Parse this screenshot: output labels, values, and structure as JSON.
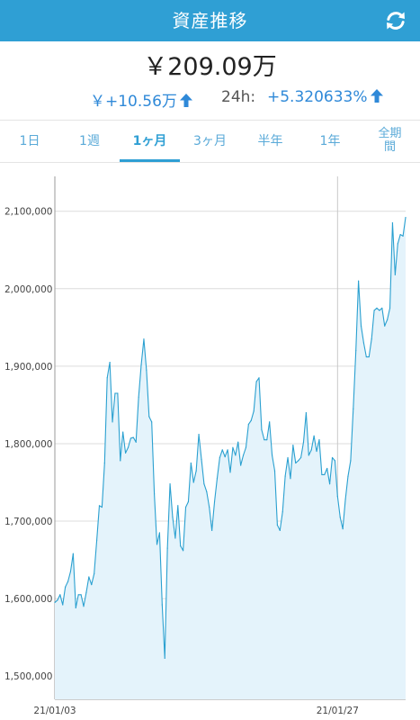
{
  "header": {
    "title": "資産推移",
    "refresh_icon": "refresh-icon",
    "color": "#2f9fd4"
  },
  "summary": {
    "total": "￥209.09万",
    "change_value": "￥+10.56万",
    "period_label": "24h:",
    "change_percent": "+5.320633%",
    "change_direction": "up",
    "change_color": "#2f89d8"
  },
  "tabs": [
    {
      "label": "1日",
      "active": false
    },
    {
      "label": "1週",
      "active": false
    },
    {
      "label": "1ヶ月",
      "active": true
    },
    {
      "label": "3ヶ月",
      "active": false
    },
    {
      "label": "半年",
      "active": false
    },
    {
      "label": "1年",
      "active": false
    },
    {
      "label": "全期間",
      "active": false
    }
  ],
  "chart_data": {
    "type": "area",
    "y_ticks": [
      "2,100,000",
      "2,000,000",
      "1,900,000",
      "1,800,000",
      "1,700,000",
      "1,600,000",
      "1,500,000"
    ],
    "y_tick_values": [
      2100000,
      2000000,
      1900000,
      1800000,
      1700000,
      1600000,
      1500000
    ],
    "x_ticks": [
      "21/01/03",
      "21/01/27"
    ],
    "ylim": [
      1470000,
      2145000
    ],
    "grid": true,
    "line_color": "#2aa0d0",
    "fill_color": "#e4f3fb",
    "series": [
      {
        "values": [
          1595000,
          1598000,
          1605000,
          1592000,
          1615000,
          1622000,
          1635000,
          1658000,
          1588000,
          1605000,
          1605000,
          1590000,
          1608000,
          1628000,
          1618000,
          1632000,
          1675000,
          1720000,
          1718000,
          1775000,
          1885000,
          1905000,
          1828000,
          1865000,
          1865000,
          1778000,
          1815000,
          1788000,
          1795000,
          1807000,
          1808000,
          1802000,
          1860000,
          1902000,
          1935000,
          1895000,
          1835000,
          1828000,
          1735000,
          1670000,
          1685000,
          1592000,
          1523000,
          1665000,
          1748000,
          1705000,
          1678000,
          1720000,
          1668000,
          1662000,
          1718000,
          1725000,
          1775000,
          1750000,
          1765000,
          1812000,
          1780000,
          1748000,
          1738000,
          1718000,
          1688000,
          1725000,
          1755000,
          1782000,
          1792000,
          1783000,
          1792000,
          1763000,
          1795000,
          1785000,
          1802000,
          1772000,
          1785000,
          1795000,
          1825000,
          1830000,
          1842000,
          1880000,
          1885000,
          1818000,
          1805000,
          1805000,
          1828000,
          1785000,
          1765000,
          1695000,
          1688000,
          1712000,
          1758000,
          1782000,
          1755000,
          1798000,
          1775000,
          1778000,
          1782000,
          1802000,
          1840000,
          1785000,
          1792000,
          1810000,
          1790000,
          1805000,
          1760000,
          1760000,
          1768000,
          1748000,
          1782000,
          1778000,
          1732000,
          1705000,
          1690000,
          1728000,
          1758000,
          1778000,
          1845000,
          1920000,
          2010000,
          1952000,
          1930000,
          1912000,
          1912000,
          1935000,
          1972000,
          1975000,
          1972000,
          1975000,
          1952000,
          1960000,
          1975000,
          2085000,
          2018000,
          2058000,
          2070000,
          2068000,
          2092000
        ]
      }
    ]
  }
}
